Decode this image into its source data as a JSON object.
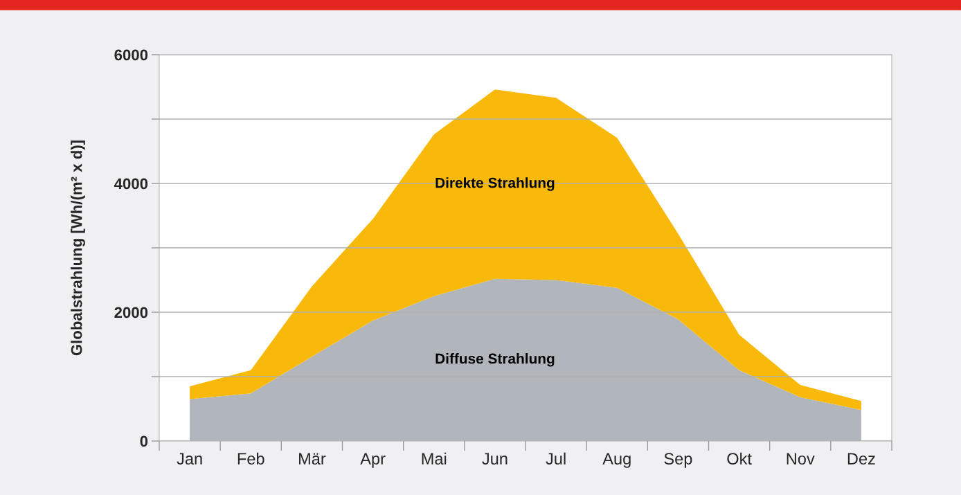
{
  "chart_data": {
    "type": "area",
    "stacked": true,
    "ylabel": "Globalstrahlung [Wh/(m² x d)]",
    "categories": [
      "Jan",
      "Feb",
      "Mär",
      "Apr",
      "Mai",
      "Jun",
      "Jul",
      "Aug",
      "Sep",
      "Okt",
      "Nov",
      "Dez"
    ],
    "series": [
      {
        "name": "Diffuse Strahlung",
        "color": "#b1b5bc",
        "values": [
          650,
          740,
          1310,
          1870,
          2250,
          2520,
          2500,
          2380,
          1890,
          1100,
          680,
          480
        ]
      },
      {
        "name": "Direkte Strahlung",
        "color": "#f9b90a",
        "values": [
          200,
          360,
          1090,
          1580,
          2510,
          2940,
          2830,
          2330,
          1330,
          550,
          190,
          140
        ]
      }
    ],
    "ylim": [
      0,
      6000
    ],
    "yticks": [
      0,
      {
        "value": 1000,
        "label": null
      },
      2000,
      {
        "value": 3000,
        "label": null
      },
      4000,
      {
        "value": 5000,
        "label": null
      },
      6000
    ],
    "grid": "y",
    "legend": false
  }
}
